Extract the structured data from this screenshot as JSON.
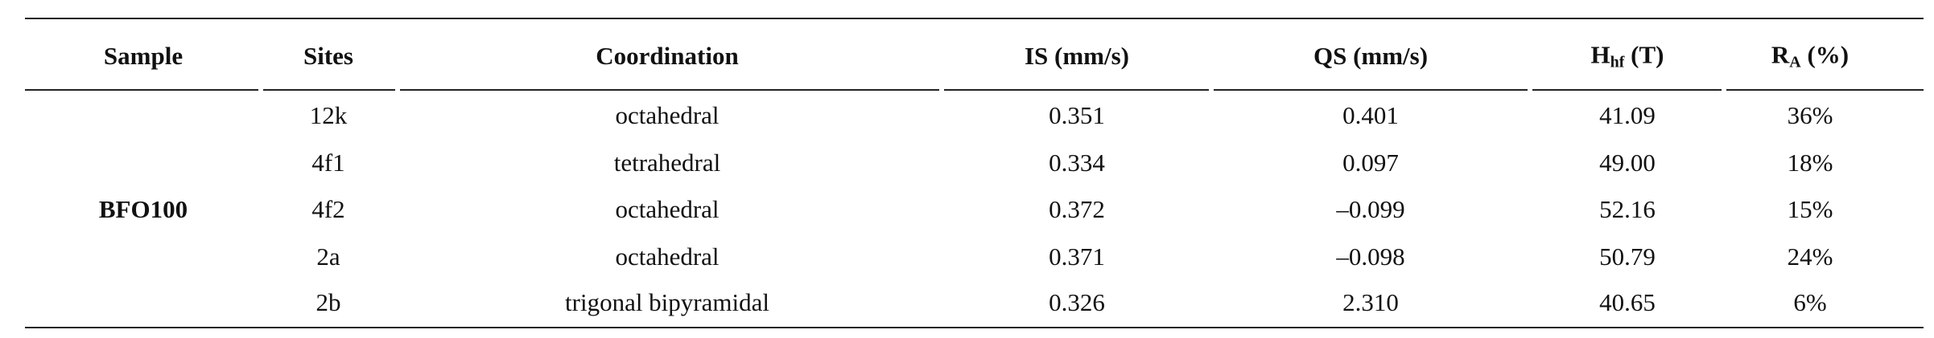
{
  "table": {
    "header": [
      {
        "text": "Sample"
      },
      {
        "text": "Sites"
      },
      {
        "text": "Coordination"
      },
      {
        "text": "IS (mm/s)"
      },
      {
        "text": "QS (mm/s)"
      },
      {
        "text": "H",
        "sub": "hf",
        "rest": " (T)"
      },
      {
        "text": "R",
        "sub": "A",
        "rest": " (%)"
      }
    ],
    "sample": "BFO100",
    "rows": [
      [
        "12k",
        "octahedral",
        "0.351",
        "0.401",
        "41.09",
        "36%"
      ],
      [
        "4f1",
        "tetrahedral",
        "0.334",
        "0.097",
        "49.00",
        "18%"
      ],
      [
        "4f2",
        "octahedral",
        "0.372",
        "–0.099",
        "52.16",
        "15%"
      ],
      [
        "2a",
        "octahedral",
        "0.371",
        "–0.098",
        "50.79",
        "24%"
      ],
      [
        "2b",
        "trigonal bipyramidal",
        "0.326",
        "2.310",
        "40.65",
        "6%"
      ]
    ]
  }
}
